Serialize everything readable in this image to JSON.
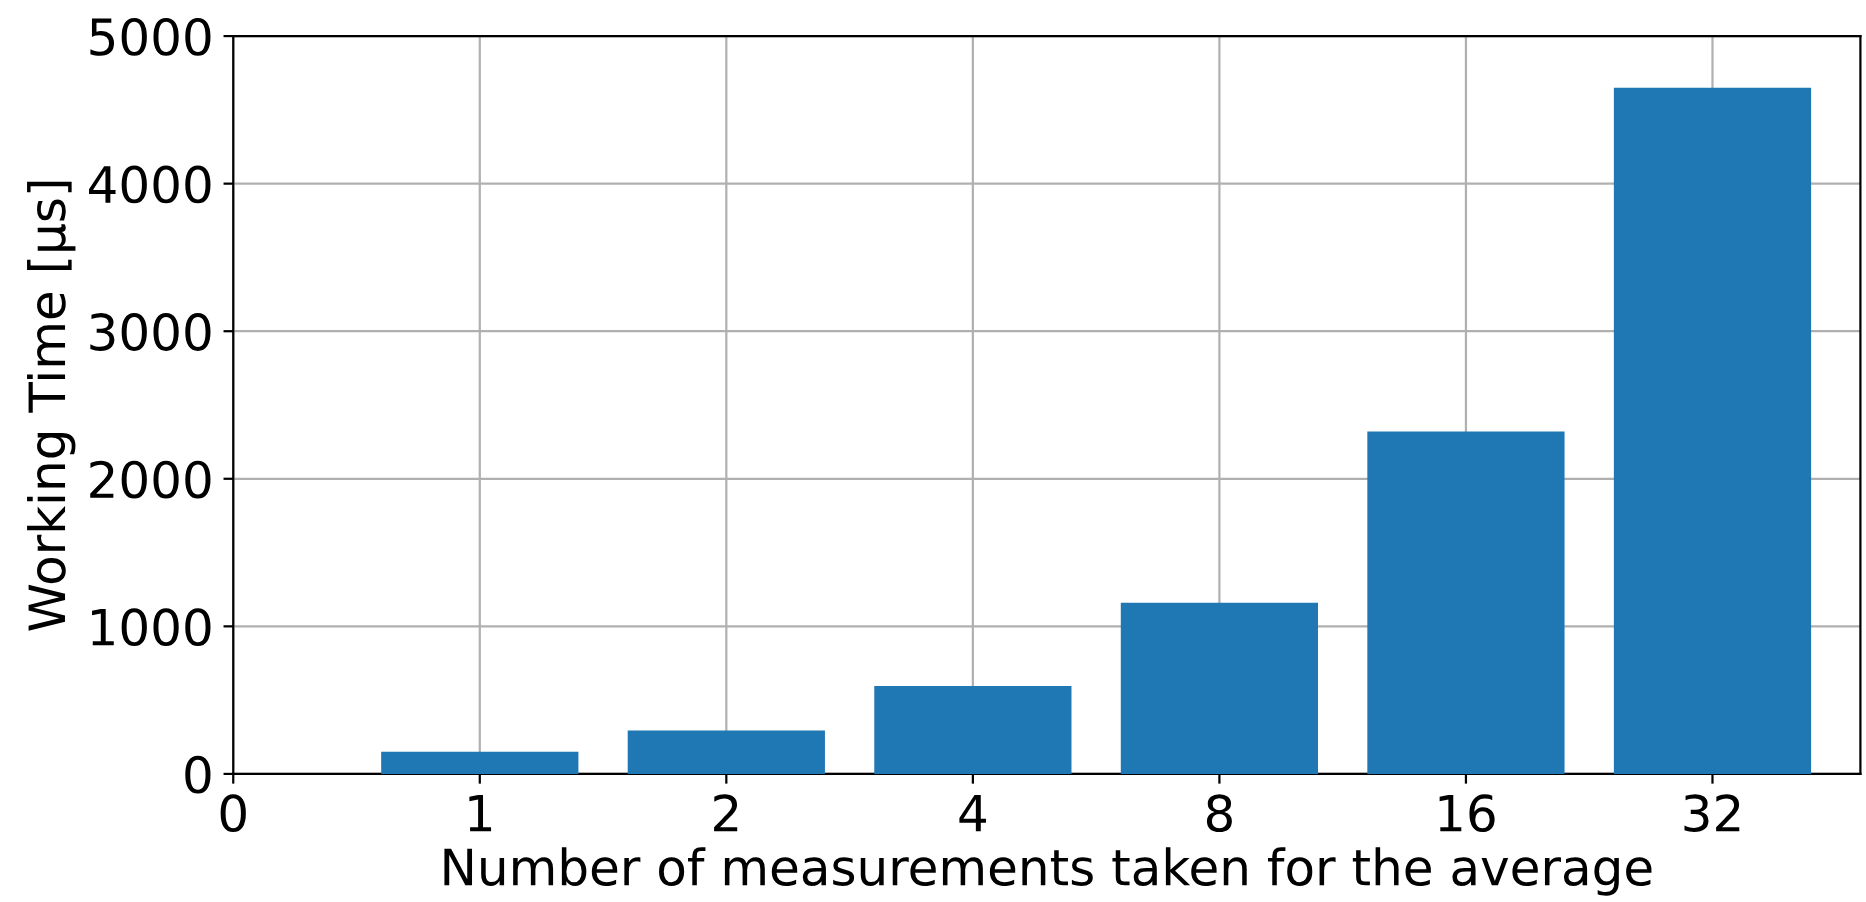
{
  "chart_data": {
    "type": "bar",
    "xlabel": "Number of measurements taken for the average",
    "ylabel": "Working Time [μs]",
    "categories": [
      "0",
      "1",
      "2",
      "4",
      "8",
      "16",
      "32"
    ],
    "values": [
      null,
      150,
      295,
      595,
      1160,
      2320,
      4650
    ],
    "color": "#1f77b4",
    "ylim": [
      0,
      5000
    ],
    "yticks": [
      0,
      1000,
      2000,
      3000,
      4000,
      5000
    ],
    "grid": true
  }
}
